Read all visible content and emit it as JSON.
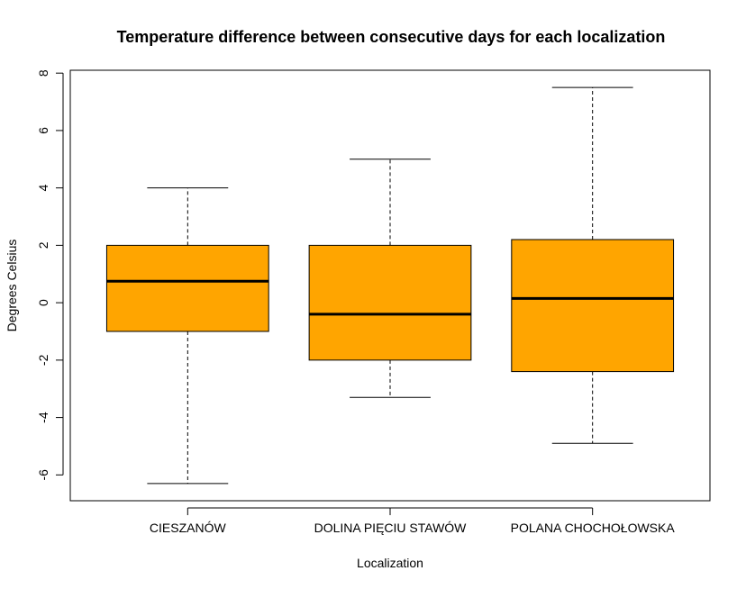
{
  "chart_data": {
    "type": "boxplot",
    "title": "Temperature difference between consecutive days for each localization",
    "xlabel": "Localization",
    "ylabel": "Degrees Celsius",
    "ylim": [
      -6.9,
      8.1
    ],
    "yticks": [
      -6,
      -4,
      -2,
      0,
      2,
      4,
      6,
      8
    ],
    "grid": false,
    "box_color": "#FFA500",
    "categories": [
      "CIESZANÓW",
      "DOLINA PIĘCIU STAWÓW",
      "POLANA CHOCHOŁOWSKA"
    ],
    "boxes": [
      {
        "min": -6.3,
        "q1": -1.0,
        "median": 0.75,
        "q3": 2.0,
        "max": 4.0
      },
      {
        "min": -3.3,
        "q1": -2.0,
        "median": -0.4,
        "q3": 2.0,
        "max": 5.0
      },
      {
        "min": -4.9,
        "q1": -2.4,
        "median": 0.15,
        "q3": 2.2,
        "max": 7.5
      }
    ]
  }
}
